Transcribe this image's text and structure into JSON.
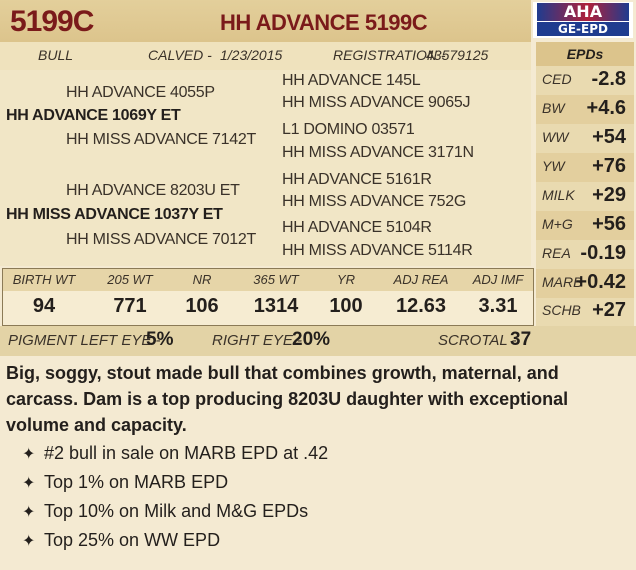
{
  "header": {
    "lot": "5199C",
    "name": "HH ADVANCE 5199C",
    "logo_top": "AHA",
    "logo_bottom": "GE-EPD"
  },
  "subheader": {
    "sex": "BULL",
    "calved_label": "CALVED -",
    "calved": "1/23/2015",
    "registration_label": "REGISTRATION -",
    "registration": "43579125"
  },
  "pedigree": {
    "sire": "HH ADVANCE 1069Y ET",
    "sire_sire": "HH ADVANCE 4055P",
    "sire_dam": "HH MISS ADVANCE 7142T",
    "sss": "HH ADVANCE 145L",
    "ssd": "HH MISS ADVANCE 9065J",
    "sds": "L1 DOMINO 03571",
    "sdd": "HH MISS ADVANCE 3171N",
    "dam": "HH MISS ADVANCE 1037Y ET",
    "dam_sire": "HH ADVANCE 8203U ET",
    "dam_dam": "HH MISS ADVANCE 7012T",
    "dss": "HH ADVANCE 5161R",
    "dsd": "HH MISS ADVANCE 752G",
    "dds": "HH ADVANCE 5104R",
    "ddd": "HH MISS ADVANCE 5114R"
  },
  "epds": {
    "title": "EPDs",
    "rows": [
      {
        "label": "CED",
        "value": "-2.8"
      },
      {
        "label": "BW",
        "value": "+4.6"
      },
      {
        "label": "WW",
        "value": "+54"
      },
      {
        "label": "YW",
        "value": "+76"
      },
      {
        "label": "MILK",
        "value": "+29"
      },
      {
        "label": "M+G",
        "value": "+56"
      },
      {
        "label": "REA",
        "value": "-0.19"
      },
      {
        "label": "MARB",
        "value": "+0.42"
      },
      {
        "label": "SCHB",
        "value": "+27"
      }
    ]
  },
  "performance": {
    "headers": [
      "BIRTH WT",
      "205 WT",
      "NR",
      "365 WT",
      "YR",
      "ADJ REA",
      "ADJ IMF"
    ],
    "values": [
      "94",
      "771",
      "106",
      "1314",
      "100",
      "12.63",
      "3.31"
    ]
  },
  "pigment": {
    "left_label": "PIGMENT LEFT EYE -",
    "left_value": "5%",
    "right_label": "RIGHT EYE -",
    "right_value": "20%",
    "scrotal_label": "SCROTAL -",
    "scrotal_value": "37"
  },
  "description": "Big, soggy, stout made bull that combines growth, maternal, and carcass. Dam is a top producing 8203U daughter with exceptional volume and capacity.",
  "bullets": [
    "#2 bull in sale on MARB EPD at .42",
    "Top 1% on MARB EPD",
    "Top 10% on Milk and M&G EPDs",
    "Top 25% on WW EPD"
  ],
  "colors": {
    "title_red": "#7a1a1a",
    "header_tan": "#dcc48c",
    "background": "#f4ead2"
  }
}
